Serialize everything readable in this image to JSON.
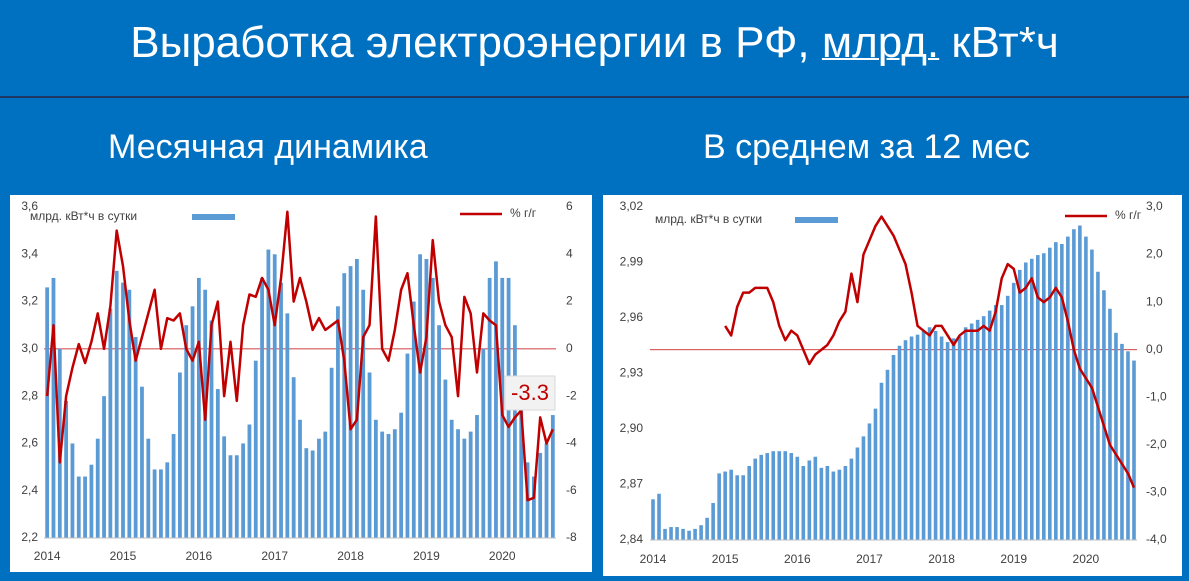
{
  "header": {
    "title": [
      "Выработка электроэнергии в РФ,",
      "млрд.",
      "кВт*ч"
    ],
    "subtitle_left": "Месячная динамика",
    "subtitle_right": "В среднем за 12 мес"
  },
  "chart_data": [
    {
      "type": "bar_line",
      "categories": [
        "2014",
        null,
        null,
        null,
        null,
        null,
        null,
        null,
        null,
        null,
        null,
        null,
        "2015",
        null,
        null,
        null,
        null,
        null,
        null,
        null,
        null,
        null,
        null,
        null,
        "2016",
        null,
        null,
        null,
        null,
        null,
        null,
        null,
        null,
        null,
        null,
        null,
        "2017",
        null,
        null,
        null,
        null,
        null,
        null,
        null,
        null,
        null,
        null,
        null,
        "2018",
        null,
        null,
        null,
        null,
        null,
        null,
        null,
        null,
        null,
        null,
        null,
        "2019",
        null,
        null,
        null,
        null,
        null,
        null,
        null,
        null,
        null,
        null,
        null,
        "2020",
        null,
        null,
        null,
        null,
        null,
        null,
        null,
        null
      ],
      "series": [
        {
          "name": "млрд. кВт*ч в сутки",
          "color": "#5b9bd5",
          "type": "bar",
          "values": [
            3.26,
            3.3,
            3.0,
            2.78,
            2.6,
            2.46,
            2.46,
            2.51,
            2.62,
            2.8,
            3.17,
            3.33,
            3.28,
            3.25,
            3.05,
            2.84,
            2.62,
            2.49,
            2.49,
            2.52,
            2.64,
            2.9,
            3.1,
            3.18,
            3.3,
            3.25,
            3.12,
            2.83,
            2.63,
            2.55,
            2.55,
            2.6,
            2.68,
            2.95,
            3.3,
            3.42,
            3.4,
            3.28,
            3.15,
            2.88,
            2.7,
            2.58,
            2.57,
            2.62,
            2.65,
            2.92,
            3.18,
            3.32,
            3.35,
            3.38,
            3.25,
            2.9,
            2.7,
            2.65,
            2.64,
            2.66,
            2.73,
            2.98,
            3.2,
            3.4,
            3.38,
            3.3,
            3.1,
            2.87,
            2.7,
            2.66,
            2.62,
            2.65,
            2.72,
            3.0,
            3.3,
            3.37,
            3.3,
            3.3,
            3.1,
            2.8,
            2.52,
            2.46,
            2.56,
            2.6,
            2.72
          ]
        },
        {
          "name": "% г/г",
          "color": "#c00000",
          "type": "line",
          "axis": "y2",
          "values": [
            -2,
            1,
            -4.8,
            -2,
            -0.8,
            0.2,
            -0.6,
            0.3,
            1.5,
            0,
            1.8,
            5,
            3.5,
            1.2,
            -0.5,
            0.5,
            1.5,
            2.5,
            0,
            1.3,
            1.2,
            1.5,
            0,
            -0.5,
            0.3,
            -3,
            1,
            2,
            -2,
            0.3,
            -2.2,
            1,
            2.3,
            2.2,
            3,
            2.5,
            1,
            3,
            5.8,
            2,
            3,
            2,
            0.8,
            1.3,
            0.8,
            1,
            1.2,
            -0.5,
            -3.4,
            -3,
            0.5,
            1,
            5.6,
            0,
            -0.5,
            0.8,
            2.5,
            3.2,
            1,
            -1,
            0.5,
            4.6,
            2,
            1,
            0.5,
            -2,
            2.2,
            1.5,
            -1,
            1.5,
            1.2,
            1.0,
            -2.8,
            -3.3,
            -2.9,
            -2.6,
            -6.4,
            -6.3,
            -2.9,
            -4.0,
            -3.4
          ]
        }
      ],
      "ylim": [
        2.2,
        3.6
      ],
      "yticks": [
        {
          "value": 2.2,
          "label": "2,2"
        },
        {
          "value": 2.4,
          "label": "2,4"
        },
        {
          "value": 2.6,
          "label": "2,6"
        },
        {
          "value": 2.8,
          "label": "2,8"
        },
        {
          "value": 3.0,
          "label": "3,0"
        },
        {
          "value": 3.2,
          "label": "3,2"
        },
        {
          "value": 3.4,
          "label": "3,4"
        },
        {
          "value": 3.6,
          "label": "3,6"
        }
      ],
      "y2lim": [
        -8,
        6
      ],
      "y2ticks": [
        -8,
        -6,
        -4,
        -2,
        0,
        2,
        4,
        6
      ],
      "annotation": "-3.3"
    },
    {
      "type": "bar_line",
      "categories": [
        "2014",
        null,
        null,
        null,
        null,
        null,
        null,
        null,
        null,
        null,
        null,
        null,
        "2015",
        null,
        null,
        null,
        null,
        null,
        null,
        null,
        null,
        null,
        null,
        null,
        "2016",
        null,
        null,
        null,
        null,
        null,
        null,
        null,
        null,
        null,
        null,
        null,
        "2017",
        null,
        null,
        null,
        null,
        null,
        null,
        null,
        null,
        null,
        null,
        null,
        "2018",
        null,
        null,
        null,
        null,
        null,
        null,
        null,
        null,
        null,
        null,
        null,
        "2019",
        null,
        null,
        null,
        null,
        null,
        null,
        null,
        null,
        null,
        null,
        null,
        "2020",
        null,
        null,
        null,
        null,
        null,
        null,
        null,
        null
      ],
      "series": [
        {
          "name": "млрд. кВт*ч в сутки",
          "color": "#5b9bd5",
          "type": "bar",
          "values": [
            2.862,
            2.865,
            2.846,
            2.847,
            2.847,
            2.846,
            2.845,
            2.846,
            2.848,
            2.852,
            2.86,
            2.876,
            2.877,
            2.878,
            2.875,
            2.875,
            2.88,
            2.884,
            2.886,
            2.887,
            2.888,
            2.888,
            2.888,
            2.887,
            2.885,
            2.88,
            2.883,
            2.885,
            2.879,
            2.88,
            2.877,
            2.878,
            2.88,
            2.884,
            2.89,
            2.896,
            2.903,
            2.911,
            2.925,
            2.932,
            2.94,
            2.945,
            2.948,
            2.95,
            2.951,
            2.953,
            2.955,
            2.953,
            2.95,
            2.947,
            2.949,
            2.95,
            2.955,
            2.957,
            2.959,
            2.961,
            2.964,
            2.967,
            2.967,
            2.972,
            2.979,
            2.986,
            2.99,
            2.992,
            2.994,
            2.995,
            2.998,
            3.001,
            3.0,
            3.004,
            3.008,
            3.01,
            3.004,
            2.997,
            2.985,
            2.975,
            2.965,
            2.952,
            2.946,
            2.942,
            2.937
          ]
        },
        {
          "name": "% г/г",
          "color": "#c00000",
          "type": "line",
          "axis": "y2",
          "values": [
            null,
            null,
            null,
            null,
            null,
            null,
            null,
            null,
            null,
            null,
            null,
            null,
            0.5,
            0.3,
            0.9,
            1.2,
            1.2,
            1.3,
            1.3,
            1.3,
            1.0,
            0.5,
            0.2,
            0.4,
            0.3,
            0,
            -0.3,
            -0.1,
            0,
            0.1,
            0.3,
            0.6,
            0.8,
            1.6,
            1.0,
            2.0,
            2.3,
            2.6,
            2.8,
            2.6,
            2.4,
            2.1,
            1.8,
            1.2,
            0.5,
            0.4,
            0.3,
            0.5,
            0.5,
            0.3,
            0.1,
            0.3,
            0.4,
            0.4,
            0.4,
            0.5,
            0.4,
            0.8,
            1.5,
            1.8,
            1.7,
            1.2,
            1.3,
            1.5,
            1.1,
            1.0,
            1.1,
            1.3,
            1.1,
            0.6,
            0,
            -0.4,
            -0.6,
            -0.8,
            -1.2,
            -1.6,
            -2.0,
            -2.2,
            -2.4,
            -2.6,
            -2.9
          ]
        }
      ],
      "ylim": [
        2.84,
        3.02
      ],
      "yticks": [
        {
          "value": 2.84,
          "label": "2,84"
        },
        {
          "value": 2.87,
          "label": "2,87"
        },
        {
          "value": 2.9,
          "label": "2,90"
        },
        {
          "value": 2.93,
          "label": "2,93"
        },
        {
          "value": 2.96,
          "label": "2,96"
        },
        {
          "value": 2.99,
          "label": "2,99"
        },
        {
          "value": 3.02,
          "label": "3,02"
        }
      ],
      "y2lim": [
        -4,
        3
      ],
      "y2ticks": [
        {
          "value": -4,
          "label": "-4,0"
        },
        {
          "value": -3,
          "label": "-3,0"
        },
        {
          "value": -2,
          "label": "-2,0"
        },
        {
          "value": -1,
          "label": "-1,0"
        },
        {
          "value": 0,
          "label": "0,0"
        },
        {
          "value": 1,
          "label": "1,0"
        },
        {
          "value": 2,
          "label": "2,0"
        },
        {
          "value": 3,
          "label": "3,0"
        }
      ]
    }
  ]
}
